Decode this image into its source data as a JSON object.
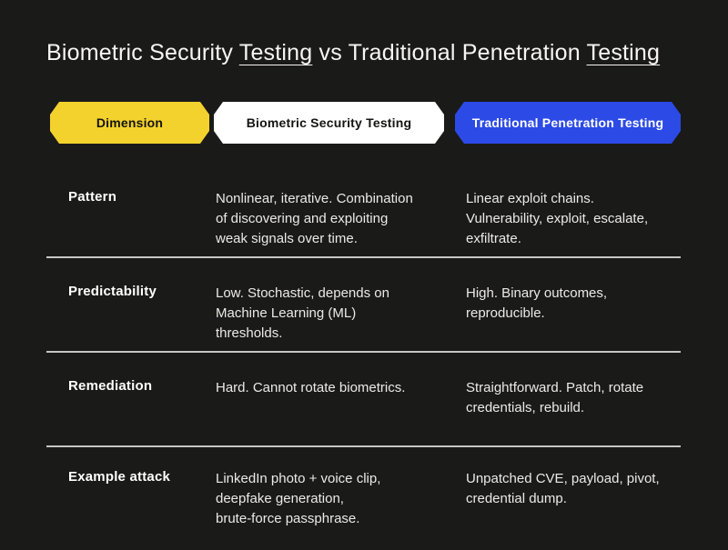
{
  "title": {
    "part1": "Biometric Security ",
    "underlined_word_1": "Testing",
    "part2": " vs Traditional Penetration ",
    "underlined_word_2": "Testing"
  },
  "table": {
    "headers": [
      {
        "label": "Dimension",
        "bg": "#F3D22D",
        "fg": "#141412"
      },
      {
        "label": "Biometric Security Testing",
        "bg": "#FFFFFF",
        "fg": "#141412"
      },
      {
        "label": "Traditional Penetration Testing",
        "bg": "#2C4AE6",
        "fg": "#FFFFFF"
      }
    ],
    "rows": [
      {
        "dimension": "Pattern",
        "biometric": "Nonlinear, iterative. Combination\nof discovering and exploiting\nweak signals over time.",
        "traditional": "Linear exploit chains.\nVulnerability, exploit, escalate,\nexfiltrate."
      },
      {
        "dimension": "Predictability",
        "biometric": "Low. Stochastic, depends on\nMachine Learning (ML)\nthresholds.",
        "traditional": "High. Binary outcomes,\nreproducible."
      },
      {
        "dimension": "Remediation",
        "biometric": "Hard. Cannot rotate biometrics.",
        "traditional": "Straightforward. Patch, rotate\ncredentials, rebuild."
      },
      {
        "dimension": "Example attack",
        "biometric": "LinkedIn photo + voice clip,\ndeepfake generation,\nbrute-force passphrase.",
        "traditional": "Unpatched CVE, payload, pivot,\ncredential dump."
      }
    ]
  },
  "colors": {
    "background": "#1A1A18",
    "title_text": "#F7F6F4",
    "body_text": "#EBEAE7",
    "divider": "#C6C6C4",
    "badge_yellow": "#F3D22D",
    "badge_white": "#FFFFFF",
    "badge_blue": "#2C4AE6"
  }
}
